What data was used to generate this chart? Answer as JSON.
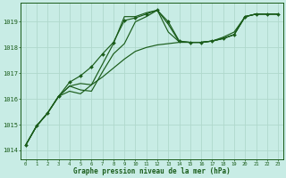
{
  "bg_color": "#c8ece5",
  "grid_color": "#b0d8cc",
  "line_color": "#1a5c1a",
  "title": "Graphe pression niveau de la mer (hPa)",
  "hours": [
    0,
    1,
    2,
    3,
    4,
    5,
    6,
    7,
    8,
    9,
    10,
    11,
    12,
    13,
    14,
    15,
    16,
    17,
    18,
    19,
    20,
    21,
    22,
    23
  ],
  "ylim": [
    1013.65,
    1019.75
  ],
  "yticks": [
    1014,
    1015,
    1016,
    1017,
    1018,
    1019
  ],
  "series_marked": [
    1014.2,
    1014.95,
    1015.45,
    1016.1,
    1016.65,
    1016.9,
    1017.25,
    1017.75,
    1018.2,
    1019.05,
    1019.15,
    1019.3,
    1019.45,
    1019.0,
    1018.25,
    1018.2,
    1018.2,
    1018.25,
    1018.35,
    1018.5,
    1019.2,
    1019.3,
    1019.3,
    1019.3
  ],
  "series2": [
    1014.2,
    1014.95,
    1015.45,
    1016.1,
    1016.3,
    1016.2,
    1016.55,
    1016.85,
    1017.2,
    1017.55,
    1017.85,
    1018.0,
    1018.1,
    1018.15,
    1018.2,
    1018.2,
    1018.2,
    1018.25,
    1018.35,
    1018.5,
    1019.2,
    1019.3,
    1019.3,
    1019.3
  ],
  "series3": [
    1014.2,
    1014.95,
    1015.45,
    1016.1,
    1016.5,
    1016.35,
    1016.3,
    1017.05,
    1017.75,
    1018.15,
    1019.0,
    1019.2,
    1019.45,
    1018.6,
    1018.22,
    1018.2,
    1018.2,
    1018.25,
    1018.4,
    1018.6,
    1019.2,
    1019.3,
    1019.3,
    1019.3
  ],
  "series4": [
    1014.2,
    1014.95,
    1015.45,
    1016.1,
    1016.5,
    1016.6,
    1016.55,
    1017.35,
    1018.15,
    1019.2,
    1019.2,
    1019.35,
    1019.45,
    1018.9,
    1018.22,
    1018.2,
    1018.2,
    1018.25,
    1018.35,
    1018.5,
    1019.2,
    1019.3,
    1019.3,
    1019.3
  ]
}
